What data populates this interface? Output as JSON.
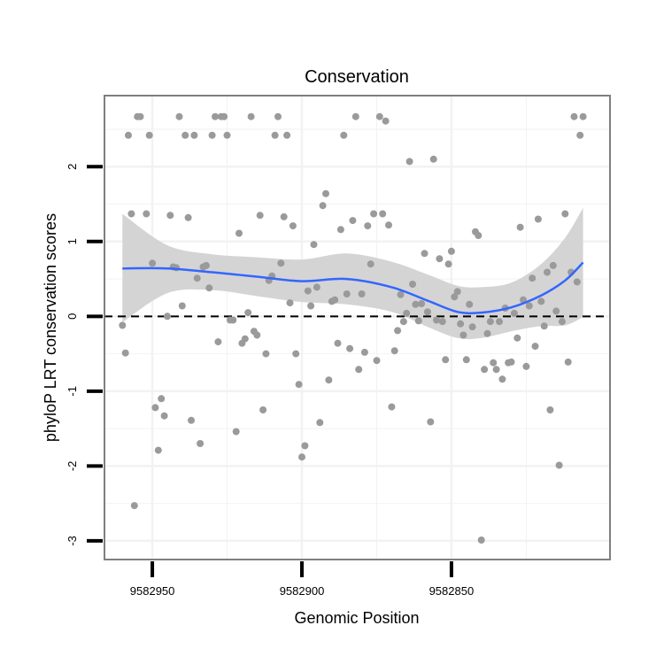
{
  "chart_data": {
    "type": "scatter",
    "title": "Conservation",
    "xlabel": "Genomic Position",
    "ylabel": "phyloP LRT conservation scores",
    "x_reversed": true,
    "xlim": [
      9582966,
      9582797
    ],
    "ylim": [
      -3.25,
      2.95
    ],
    "x_ticks": [
      9582950,
      9582900,
      9582850
    ],
    "x_tick_labels": [
      "9582950",
      "9582900",
      "9582850"
    ],
    "y_ticks": [
      -3,
      -2,
      -1,
      0,
      1,
      2
    ],
    "y_tick_labels": [
      "-3",
      "-2",
      "-1",
      "0",
      "1",
      "2"
    ],
    "grid": true,
    "reference_line": {
      "y": 0,
      "style": "dashed"
    },
    "colors": {
      "points": "#9a9a9a",
      "smooth_line": "#3366ff",
      "ribbon": "#d4d4d4",
      "grid": "#f2f2f2",
      "panel_border": "#7f7f7f"
    },
    "points": [
      [
        9582960,
        -0.12
      ],
      [
        9582959,
        -0.49
      ],
      [
        9582958,
        2.42
      ],
      [
        9582957,
        1.37
      ],
      [
        9582956,
        -2.53
      ],
      [
        9582955,
        2.67
      ],
      [
        9582954,
        2.67
      ],
      [
        9582952,
        1.37
      ],
      [
        9582951,
        2.42
      ],
      [
        9582950,
        0.71
      ],
      [
        9582949,
        -1.22
      ],
      [
        9582948,
        -1.79
      ],
      [
        9582947,
        -1.1
      ],
      [
        9582946,
        -1.33
      ],
      [
        9582945,
        0.0
      ],
      [
        9582944,
        1.35
      ],
      [
        9582943,
        0.66
      ],
      [
        9582942,
        0.65
      ],
      [
        9582941,
        2.67
      ],
      [
        9582940,
        0.14
      ],
      [
        9582939,
        2.42
      ],
      [
        9582938,
        1.32
      ],
      [
        9582937,
        -1.39
      ],
      [
        9582936,
        2.42
      ],
      [
        9582935,
        0.51
      ],
      [
        9582934,
        -1.7
      ],
      [
        9582933,
        0.66
      ],
      [
        9582932,
        0.68
      ],
      [
        9582931,
        0.38
      ],
      [
        9582930,
        2.42
      ],
      [
        9582929,
        2.67
      ],
      [
        9582928,
        -0.34
      ],
      [
        9582927,
        2.67
      ],
      [
        9582926,
        2.67
      ],
      [
        9582925,
        2.42
      ],
      [
        9582924,
        -0.05
      ],
      [
        9582923,
        -0.05
      ],
      [
        9582922,
        -1.54
      ],
      [
        9582921,
        1.11
      ],
      [
        9582920,
        -0.36
      ],
      [
        9582919,
        -0.3
      ],
      [
        9582918,
        0.05
      ],
      [
        9582917,
        2.67
      ],
      [
        9582916,
        -0.2
      ],
      [
        9582915,
        -0.25
      ],
      [
        9582914,
        1.35
      ],
      [
        9582913,
        -1.25
      ],
      [
        9582912,
        -0.5
      ],
      [
        9582911,
        0.48
      ],
      [
        9582910,
        0.54
      ],
      [
        9582909,
        2.42
      ],
      [
        9582908,
        2.67
      ],
      [
        9582907,
        0.71
      ],
      [
        9582906,
        1.33
      ],
      [
        9582905,
        2.42
      ],
      [
        9582904,
        0.18
      ],
      [
        9582903,
        1.21
      ],
      [
        9582902,
        -0.5
      ],
      [
        9582901,
        -0.91
      ],
      [
        9582900,
        -1.88
      ],
      [
        9582899,
        -1.73
      ],
      [
        9582898,
        0.34
      ],
      [
        9582897,
        0.14
      ],
      [
        9582896,
        0.96
      ],
      [
        9582895,
        0.39
      ],
      [
        9582894,
        -1.42
      ],
      [
        9582893,
        1.48
      ],
      [
        9582892,
        1.64
      ],
      [
        9582891,
        -0.85
      ],
      [
        9582890,
        0.2
      ],
      [
        9582889,
        0.22
      ],
      [
        9582888,
        -0.36
      ],
      [
        9582887,
        1.16
      ],
      [
        9582886,
        2.42
      ],
      [
        9582885,
        0.3
      ],
      [
        9582884,
        -0.43
      ],
      [
        9582883,
        1.28
      ],
      [
        9582882,
        2.67
      ],
      [
        9582881,
        -0.71
      ],
      [
        9582880,
        0.3
      ],
      [
        9582879,
        -0.48
      ],
      [
        9582878,
        1.21
      ],
      [
        9582877,
        0.7
      ],
      [
        9582876,
        1.37
      ],
      [
        9582875,
        -0.59
      ],
      [
        9582874,
        2.67
      ],
      [
        9582873,
        1.37
      ],
      [
        9582872,
        2.61
      ],
      [
        9582871,
        1.22
      ],
      [
        9582870,
        -1.21
      ],
      [
        9582869,
        -0.46
      ],
      [
        9582868,
        -0.19
      ],
      [
        9582867,
        0.29
      ],
      [
        9582866,
        -0.07
      ],
      [
        9582865,
        0.04
      ],
      [
        9582864,
        2.07
      ],
      [
        9582863,
        0.43
      ],
      [
        9582862,
        0.16
      ],
      [
        9582861,
        -0.06
      ],
      [
        9582860,
        0.17
      ],
      [
        9582859,
        0.84
      ],
      [
        9582858,
        0.06
      ],
      [
        9582857,
        -1.41
      ],
      [
        9582856,
        2.1
      ],
      [
        9582855,
        -0.05
      ],
      [
        9582854,
        0.77
      ],
      [
        9582853,
        -0.07
      ],
      [
        9582852,
        -0.58
      ],
      [
        9582851,
        0.7
      ],
      [
        9582850,
        0.87
      ],
      [
        9582849,
        0.26
      ],
      [
        9582848,
        0.33
      ],
      [
        9582847,
        -0.1
      ],
      [
        9582846,
        -0.25
      ],
      [
        9582845,
        -0.58
      ],
      [
        9582844,
        0.16
      ],
      [
        9582843,
        -0.14
      ],
      [
        9582842,
        1.13
      ],
      [
        9582841,
        1.08
      ],
      [
        9582840,
        -2.99
      ],
      [
        9582839,
        -0.71
      ],
      [
        9582838,
        -0.23
      ],
      [
        9582837,
        -0.07
      ],
      [
        9582836,
        -0.62
      ],
      [
        9582835,
        -0.71
      ],
      [
        9582834,
        -0.07
      ],
      [
        9582833,
        -0.84
      ],
      [
        9582832,
        0.11
      ],
      [
        9582831,
        -0.62
      ],
      [
        9582830,
        -0.61
      ],
      [
        9582829,
        0.04
      ],
      [
        9582828,
        -0.29
      ],
      [
        9582827,
        1.19
      ],
      [
        9582826,
        0.22
      ],
      [
        9582825,
        -0.67
      ],
      [
        9582824,
        0.14
      ],
      [
        9582823,
        0.51
      ],
      [
        9582822,
        -0.4
      ],
      [
        9582821,
        1.3
      ],
      [
        9582820,
        0.2
      ],
      [
        9582819,
        -0.13
      ],
      [
        9582818,
        0.59
      ],
      [
        9582817,
        -1.25
      ],
      [
        9582816,
        0.68
      ],
      [
        9582815,
        0.07
      ],
      [
        9582814,
        -1.99
      ],
      [
        9582813,
        -0.07
      ],
      [
        9582812,
        1.37
      ],
      [
        9582811,
        -0.61
      ],
      [
        9582810,
        0.59
      ],
      [
        9582809,
        2.67
      ],
      [
        9582808,
        0.46
      ],
      [
        9582807,
        2.42
      ],
      [
        9582806,
        2.67
      ]
    ],
    "smooth_fit": {
      "x": [
        9582960,
        9582945,
        9582930,
        9582915,
        9582900,
        9582885,
        9582870,
        9582858,
        9582848,
        9582840,
        9582830,
        9582820,
        9582812,
        9582806
      ],
      "y": [
        0.64,
        0.64,
        0.59,
        0.53,
        0.47,
        0.5,
        0.39,
        0.21,
        0.06,
        0.05,
        0.12,
        0.28,
        0.48,
        0.72
      ],
      "lower": [
        -0.08,
        0.31,
        0.35,
        0.27,
        0.19,
        0.16,
        0.06,
        -0.14,
        -0.29,
        -0.29,
        -0.2,
        -0.13,
        -0.12,
        -0.01
      ],
      "upper": [
        1.37,
        0.95,
        0.83,
        0.79,
        0.76,
        0.84,
        0.73,
        0.56,
        0.41,
        0.39,
        0.45,
        0.7,
        1.05,
        1.45
      ]
    }
  }
}
